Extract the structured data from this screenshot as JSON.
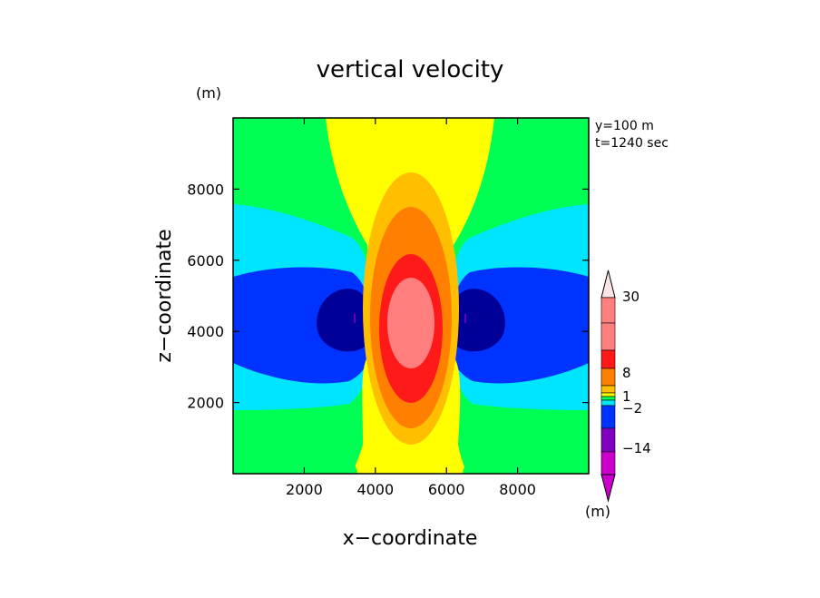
{
  "chart_data": {
    "type": "heatmap",
    "title": "vertical velocity",
    "xlabel": "x−coordinate",
    "ylabel": "z−coordinate",
    "x_unit": "(m)",
    "y_unit": "(m)",
    "info_lines": [
      "y=100  m",
      "t=1240 sec"
    ],
    "xlim": [
      0,
      10000
    ],
    "ylim": [
      0,
      10000
    ],
    "x_ticks": [
      2000,
      4000,
      6000,
      8000
    ],
    "y_ticks": [
      2000,
      4000,
      6000,
      8000
    ],
    "colorbar": {
      "unit": "(m)",
      "labels": [
        "30",
        "8",
        "1",
        "−2",
        "−14"
      ],
      "colors": [
        "#ff7f7f",
        "#ff1a1a",
        "#ff8000",
        "#ffbf00",
        "#ffff00",
        "#00ff55",
        "#00e5ff",
        "#0033ff",
        "#000099",
        "#7f00bf",
        "#cc00cc"
      ]
    },
    "field": {
      "center_x": 5000,
      "center_z": 4300,
      "max_updraft_level": "30",
      "min_downdraft_level": "-14"
    }
  }
}
